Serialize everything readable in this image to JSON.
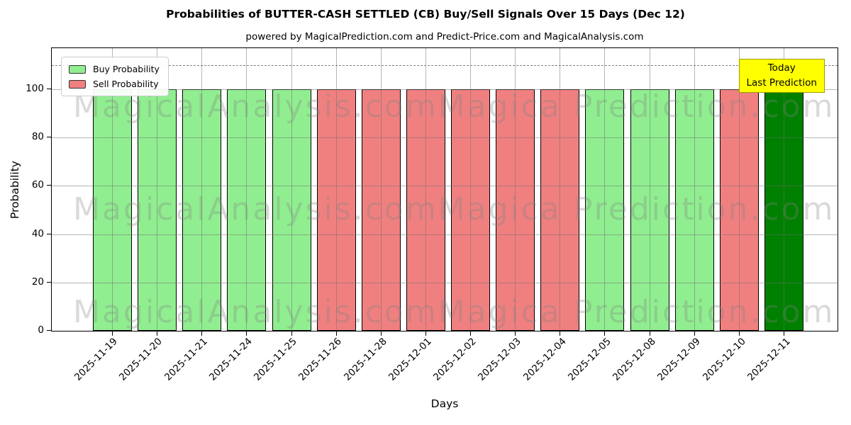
{
  "figure": {
    "title": "Probabilities of BUTTER-CASH SETTLED (CB) Buy/Sell Signals Over 15 Days (Dec 12)",
    "subtitle": "powered by MagicalPrediction.com and Predict-Price.com and MagicalAnalysis.com"
  },
  "legend": {
    "items": [
      {
        "label": "Buy Probability",
        "color": "#90EE90"
      },
      {
        "label": "Sell Probability",
        "color": "#F08080"
      }
    ]
  },
  "annotation": {
    "line1": "Today",
    "line2": "Last Prediction",
    "bg_color": "#FFFF00",
    "border_color": "#9B9B00"
  },
  "watermark": {
    "left_text": "MagicalAnalysis.com",
    "right_text": "Magica Prediction.com",
    "color": "rgba(128,128,128,0.3)",
    "row_count": 3
  },
  "chart_data": {
    "type": "bar",
    "title": "Probabilities of BUTTER-CASH SETTLED (CB) Buy/Sell Signals Over 15 Days (Dec 12)",
    "xlabel": "Days",
    "ylabel": "Probability",
    "categories": [
      "2025-11-19",
      "2025-11-20",
      "2025-11-21",
      "2025-11-24",
      "2025-11-25",
      "2025-11-26",
      "2025-11-28",
      "2025-12-01",
      "2025-12-02",
      "2025-12-03",
      "2025-12-04",
      "2025-12-05",
      "2025-12-08",
      "2025-12-09",
      "2025-12-10",
      "2025-12-11"
    ],
    "values": [
      100,
      100,
      100,
      100,
      100,
      100,
      100,
      100,
      100,
      100,
      100,
      100,
      100,
      100,
      100,
      100
    ],
    "signals": [
      "buy",
      "buy",
      "buy",
      "buy",
      "buy",
      "sell",
      "sell",
      "sell",
      "sell",
      "sell",
      "sell",
      "buy",
      "buy",
      "buy",
      "sell",
      "today"
    ],
    "signal_colors": {
      "buy": "#90EE90",
      "sell": "#F08080",
      "today": "#008000"
    },
    "series": [
      {
        "name": "Buy Probability",
        "values": [
          100,
          100,
          100,
          100,
          100,
          0,
          0,
          0,
          0,
          0,
          0,
          100,
          100,
          100,
          0,
          0
        ]
      },
      {
        "name": "Sell Probability",
        "values": [
          0,
          0,
          0,
          0,
          0,
          100,
          100,
          100,
          100,
          100,
          100,
          0,
          0,
          0,
          100,
          0
        ]
      },
      {
        "name": "Today Last Prediction",
        "values": [
          0,
          0,
          0,
          0,
          0,
          0,
          0,
          0,
          0,
          0,
          0,
          0,
          0,
          0,
          0,
          100
        ]
      }
    ],
    "ylim": [
      0,
      117
    ],
    "yticks": [
      0,
      20,
      40,
      60,
      80,
      100
    ],
    "threshold_line": {
      "y": 110,
      "style": "dashed",
      "color": "#808080"
    },
    "grid": true,
    "legend_position": "upper left",
    "bar_edge_color": "#000000"
  }
}
